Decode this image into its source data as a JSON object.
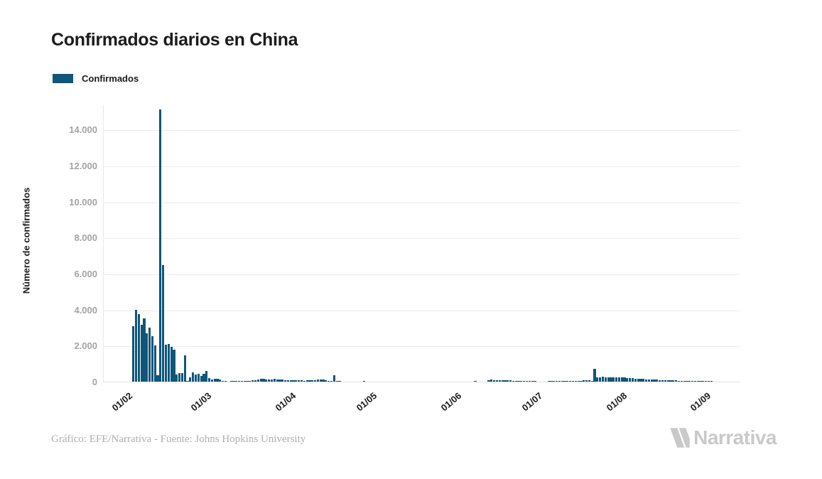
{
  "title": "Confirmados diarios en China",
  "legend": {
    "label": "Confirmados",
    "swatch_color": "#0F5679"
  },
  "y_axis": {
    "title": "Número de confirmados",
    "ticks": [
      {
        "label": "0",
        "value": 0
      },
      {
        "label": "2.000",
        "value": 2000
      },
      {
        "label": "4.000",
        "value": 4000
      },
      {
        "label": "6.000",
        "value": 6000
      },
      {
        "label": "8.000",
        "value": 8000
      },
      {
        "label": "10.000",
        "value": 10000
      },
      {
        "label": "12.000",
        "value": 12000
      },
      {
        "label": "14.000",
        "value": 14000
      }
    ]
  },
  "x_axis": {
    "tick_labels": [
      "01/02",
      "01/03",
      "01/04",
      "01/05",
      "01/06",
      "01/07",
      "01/08",
      "01/09"
    ]
  },
  "footer": {
    "credit": "Gráfico: EFE/Narrativa - Fuente: Johns Hopkins University"
  },
  "branding": {
    "logo_text": "Narrativa",
    "logo_icon": "narrativa-n-icon",
    "color": "#c9c9c9"
  },
  "colors": {
    "bar": "#0F5679",
    "grid": "#ededed",
    "baseline": "#dfe2e5",
    "y_label": "#a3a3a3",
    "x_label": "#1a1a1a",
    "title": "#1b1b1b",
    "credit": "#b0aeae"
  },
  "chart_data": {
    "type": "bar",
    "title": "Confirmados diarios en China",
    "xlabel": "",
    "ylabel": "Número de confirmados",
    "series_name": "Confirmados",
    "ylim": [
      0,
      15400
    ],
    "grid": true,
    "legend_position": "top-left",
    "date_format": "dd/mm",
    "x_tick_labels": [
      "01/02",
      "01/03",
      "01/04",
      "01/05",
      "01/06",
      "01/07",
      "01/08",
      "01/09"
    ],
    "points": [
      [
        "03/02",
        3086
      ],
      [
        "04/02",
        3991
      ],
      [
        "05/02",
        3733
      ],
      [
        "06/02",
        3147
      ],
      [
        "07/02",
        3523
      ],
      [
        "08/02",
        2704
      ],
      [
        "09/02",
        3015
      ],
      [
        "10/02",
        2525
      ],
      [
        "11/02",
        2032
      ],
      [
        "12/02",
        373
      ],
      [
        "13/02",
        15136
      ],
      [
        "14/02",
        6463
      ],
      [
        "15/02",
        2055
      ],
      [
        "16/02",
        2100
      ],
      [
        "17/02",
        1921
      ],
      [
        "18/02",
        1777
      ],
      [
        "19/02",
        408
      ],
      [
        "20/02",
        458
      ],
      [
        "21/02",
        473
      ],
      [
        "22/02",
        1451
      ],
      [
        "23/02",
        21
      ],
      [
        "24/02",
        219
      ],
      [
        "25/02",
        513
      ],
      [
        "26/02",
        412
      ],
      [
        "27/02",
        434
      ],
      [
        "28/02",
        328
      ],
      [
        "29/02",
        428
      ],
      [
        "01/03",
        576
      ],
      [
        "02/03",
        206
      ],
      [
        "03/03",
        130
      ],
      [
        "04/03",
        142
      ],
      [
        "05/03",
        146
      ],
      [
        "06/03",
        102
      ],
      [
        "07/03",
        46
      ],
      [
        "08/03",
        45
      ],
      [
        "09/03",
        20
      ],
      [
        "10/03",
        26
      ],
      [
        "11/03",
        31
      ],
      [
        "12/03",
        26
      ],
      [
        "13/03",
        21
      ],
      [
        "14/03",
        32
      ],
      [
        "15/03",
        27
      ],
      [
        "16/03",
        29
      ],
      [
        "17/03",
        39
      ],
      [
        "18/03",
        84
      ],
      [
        "19/03",
        93
      ],
      [
        "20/03",
        102
      ],
      [
        "21/03",
        150
      ],
      [
        "22/03",
        140
      ],
      [
        "23/03",
        133
      ],
      [
        "24/03",
        117
      ],
      [
        "25/03",
        122
      ],
      [
        "26/03",
        156
      ],
      [
        "27/03",
        127
      ],
      [
        "28/03",
        134
      ],
      [
        "29/03",
        106
      ],
      [
        "30/03",
        87
      ],
      [
        "31/03",
        79
      ],
      [
        "01/04",
        90
      ],
      [
        "02/04",
        85
      ],
      [
        "03/04",
        78
      ],
      [
        "04/04",
        62
      ],
      [
        "05/04",
        76
      ],
      [
        "06/04",
        55
      ],
      [
        "07/04",
        84
      ],
      [
        "08/04",
        92
      ],
      [
        "09/04",
        73
      ],
      [
        "10/04",
        82
      ],
      [
        "11/04",
        108
      ],
      [
        "12/04",
        125
      ],
      [
        "13/04",
        120
      ],
      [
        "14/04",
        72
      ],
      [
        "15/04",
        56
      ],
      [
        "16/04",
        52
      ],
      [
        "17/04",
        352
      ],
      [
        "18/04",
        37
      ],
      [
        "19/04",
        25
      ],
      [
        "20/04",
        17
      ],
      [
        "21/04",
        16
      ],
      [
        "22/04",
        12
      ],
      [
        "23/04",
        9
      ],
      [
        "24/04",
        15
      ],
      [
        "25/04",
        14
      ],
      [
        "26/04",
        16
      ],
      [
        "27/04",
        9
      ],
      [
        "28/04",
        26
      ],
      [
        "29/04",
        6
      ],
      [
        "30/04",
        10
      ],
      [
        "01/05",
        12
      ],
      [
        "02/05",
        3
      ],
      [
        "03/05",
        17
      ],
      [
        "04/05",
        6
      ],
      [
        "05/05",
        4
      ],
      [
        "06/05",
        8
      ],
      [
        "07/05",
        4
      ],
      [
        "08/05",
        4
      ],
      [
        "09/05",
        17
      ],
      [
        "10/05",
        20
      ],
      [
        "11/05",
        8
      ],
      [
        "12/05",
        9
      ],
      [
        "13/05",
        10
      ],
      [
        "14/05",
        6
      ],
      [
        "15/05",
        12
      ],
      [
        "16/05",
        11
      ],
      [
        "17/05",
        10
      ],
      [
        "18/05",
        13
      ],
      [
        "19/05",
        8
      ],
      [
        "20/05",
        9
      ],
      [
        "21/05",
        4
      ],
      [
        "22/05",
        8
      ],
      [
        "23/05",
        6
      ],
      [
        "24/05",
        14
      ],
      [
        "25/05",
        12
      ],
      [
        "26/05",
        9
      ],
      [
        "27/05",
        8
      ],
      [
        "28/05",
        4
      ],
      [
        "29/05",
        9
      ],
      [
        "30/05",
        6
      ],
      [
        "31/05",
        18
      ],
      [
        "01/06",
        16
      ],
      [
        "02/06",
        5
      ],
      [
        "03/06",
        1
      ],
      [
        "04/06",
        11
      ],
      [
        "05/06",
        9
      ],
      [
        "06/06",
        8
      ],
      [
        "07/06",
        10
      ],
      [
        "08/06",
        49
      ],
      [
        "09/06",
        3
      ],
      [
        "10/06",
        15
      ],
      [
        "11/06",
        18
      ],
      [
        "12/06",
        15
      ],
      [
        "13/06",
        64
      ],
      [
        "14/06",
        100
      ],
      [
        "15/06",
        95
      ],
      [
        "16/06",
        80
      ],
      [
        "17/06",
        70
      ],
      [
        "18/06",
        75
      ],
      [
        "19/06",
        70
      ],
      [
        "20/06",
        65
      ],
      [
        "21/06",
        60
      ],
      [
        "22/06",
        50
      ],
      [
        "23/06",
        45
      ],
      [
        "24/06",
        40
      ],
      [
        "25/06",
        38
      ],
      [
        "26/06",
        35
      ],
      [
        "27/06",
        30
      ],
      [
        "28/06",
        28
      ],
      [
        "29/06",
        25
      ],
      [
        "30/06",
        22
      ],
      [
        "01/07",
        20
      ],
      [
        "02/07",
        18
      ],
      [
        "03/07",
        16
      ],
      [
        "04/07",
        20
      ],
      [
        "05/07",
        22
      ],
      [
        "06/07",
        25
      ],
      [
        "07/07",
        28
      ],
      [
        "08/07",
        30
      ],
      [
        "09/07",
        25
      ],
      [
        "10/07",
        22
      ],
      [
        "11/07",
        28
      ],
      [
        "12/07",
        35
      ],
      [
        "13/07",
        40
      ],
      [
        "14/07",
        38
      ],
      [
        "15/07",
        42
      ],
      [
        "16/07",
        48
      ],
      [
        "17/07",
        55
      ],
      [
        "18/07",
        60
      ],
      [
        "19/07",
        85
      ],
      [
        "20/07",
        75
      ],
      [
        "21/07",
        45
      ],
      [
        "22/07",
        702
      ],
      [
        "23/07",
        230
      ],
      [
        "24/07",
        250
      ],
      [
        "25/07",
        265
      ],
      [
        "26/07",
        255
      ],
      [
        "27/07",
        245
      ],
      [
        "28/07",
        240
      ],
      [
        "29/07",
        235
      ],
      [
        "30/07",
        230
      ],
      [
        "31/07",
        228
      ],
      [
        "01/08",
        225
      ],
      [
        "02/08",
        220
      ],
      [
        "03/08",
        210
      ],
      [
        "04/08",
        195
      ],
      [
        "05/08",
        185
      ],
      [
        "06/08",
        172
      ],
      [
        "07/08",
        160
      ],
      [
        "08/08",
        150
      ],
      [
        "09/08",
        140
      ],
      [
        "10/08",
        130
      ],
      [
        "11/08",
        120
      ],
      [
        "12/08",
        115
      ],
      [
        "13/08",
        110
      ],
      [
        "14/08",
        100
      ],
      [
        "15/08",
        95
      ],
      [
        "16/08",
        90
      ],
      [
        "17/08",
        85
      ],
      [
        "18/08",
        75
      ],
      [
        "19/08",
        70
      ],
      [
        "20/08",
        65
      ],
      [
        "21/08",
        60
      ],
      [
        "22/08",
        55
      ],
      [
        "23/08",
        50
      ],
      [
        "24/08",
        48
      ],
      [
        "25/08",
        45
      ],
      [
        "26/08",
        42
      ],
      [
        "27/08",
        40
      ],
      [
        "28/08",
        38
      ],
      [
        "29/08",
        35
      ],
      [
        "30/08",
        32
      ],
      [
        "31/08",
        30
      ],
      [
        "01/09",
        28
      ],
      [
        "02/09",
        25
      ],
      [
        "03/09",
        22
      ],
      [
        "04/09",
        20
      ],
      [
        "05/09",
        18
      ]
    ]
  }
}
